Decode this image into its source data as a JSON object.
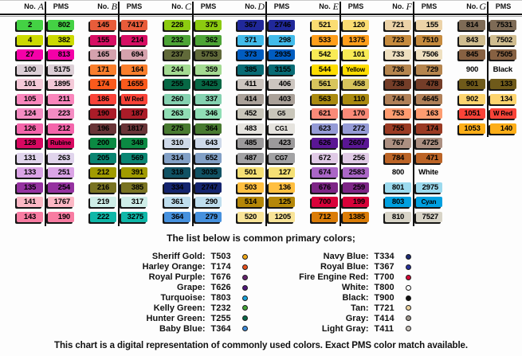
{
  "header": {
    "no_label": "No.",
    "pms_label": "PMS"
  },
  "chart_data": {
    "type": "table",
    "columns": [
      {
        "letter": "A",
        "rows": [
          {
            "no": "2",
            "pms": "802",
            "color": "#44d144"
          },
          {
            "no": "4",
            "pms": "382",
            "color": "#ccda00"
          },
          {
            "no": "27",
            "pms": "813",
            "color": "#f400a8"
          },
          {
            "no": "100",
            "pms": "5175",
            "color": "#dccfd6"
          },
          {
            "no": "101",
            "pms": "1895",
            "color": "#f4c9d8"
          },
          {
            "no": "105",
            "pms": "211",
            "color": "#fa86bc"
          },
          {
            "no": "124",
            "pms": "223",
            "color": "#f48cc2"
          },
          {
            "no": "126",
            "pms": "212",
            "color": "#f465ab"
          },
          {
            "no": "128",
            "pms": "Rubine",
            "color": "#d80861"
          },
          {
            "no": "131",
            "pms": "263",
            "color": "#e0d4ec"
          },
          {
            "no": "133",
            "pms": "251",
            "color": "#dba4e6"
          },
          {
            "no": "135",
            "pms": "254",
            "color": "#9532a0"
          },
          {
            "no": "141",
            "pms": "1767",
            "color": "#fcb8c5"
          },
          {
            "no": "143",
            "pms": "190",
            "color": "#f87ca2"
          }
        ]
      },
      {
        "letter": "B",
        "rows": [
          {
            "no": "145",
            "pms": "7417",
            "color": "#e85c3a"
          },
          {
            "no": "155",
            "pms": "214",
            "color": "#d60e63"
          },
          {
            "no": "165",
            "pms": "694",
            "color": "#d5a2ad"
          },
          {
            "no": "171",
            "pms": "164",
            "color": "#f97e2c"
          },
          {
            "no": "174",
            "pms": "1655",
            "color": "#fb5a1c"
          },
          {
            "no": "186",
            "pms": "W Red",
            "color": "#f94338"
          },
          {
            "no": "190",
            "pms": "187",
            "color": "#ab1c28"
          },
          {
            "no": "196",
            "pms": "1817",
            "color": "#693437"
          },
          {
            "no": "200",
            "pms": "348",
            "color": "#0b8a43"
          },
          {
            "no": "205",
            "pms": "569",
            "color": "#0a8572"
          },
          {
            "no": "212",
            "pms": "391",
            "color": "#a19b00"
          },
          {
            "no": "216",
            "pms": "385",
            "color": "#797322"
          },
          {
            "no": "219",
            "pms": "317",
            "color": "#cfeee8"
          },
          {
            "no": "222",
            "pms": "3275",
            "color": "#0fb7a8"
          }
        ]
      },
      {
        "letter": "C",
        "rows": [
          {
            "no": "228",
            "pms": "375",
            "color": "#8ccb10"
          },
          {
            "no": "232",
            "pms": "362",
            "color": "#4da436"
          },
          {
            "no": "237",
            "pms": "5753",
            "color": "#616a3a"
          },
          {
            "no": "244",
            "pms": "359",
            "color": "#a3da92"
          },
          {
            "no": "255",
            "pms": "3425",
            "color": "#076845"
          },
          {
            "no": "260",
            "pms": "337",
            "color": "#85d1b0"
          },
          {
            "no": "263",
            "pms": "346",
            "color": "#90deb5"
          },
          {
            "no": "275",
            "pms": "364",
            "color": "#487a30"
          },
          {
            "no": "310",
            "pms": "643",
            "color": "#ced9e9"
          },
          {
            "no": "314",
            "pms": "652",
            "color": "#82a0c6"
          },
          {
            "no": "318",
            "pms": "3035",
            "color": "#115264"
          },
          {
            "no": "334",
            "pms": "2747",
            "color": "#14246e"
          },
          {
            "no": "361",
            "pms": "290",
            "color": "#bfdeee"
          },
          {
            "no": "364",
            "pms": "279",
            "color": "#4691de"
          }
        ]
      },
      {
        "letter": "D",
        "rows": [
          {
            "no": "367",
            "pms": "2746",
            "color": "#20289a"
          },
          {
            "no": "371",
            "pms": "298",
            "color": "#41bbea"
          },
          {
            "no": "373",
            "pms": "2935",
            "color": "#005cc0"
          },
          {
            "no": "385",
            "pms": "3155",
            "color": "#086b74"
          },
          {
            "no": "411",
            "pms": "406",
            "color": "#ccc5bf"
          },
          {
            "no": "414",
            "pms": "403",
            "color": "#aaa199"
          },
          {
            "no": "452",
            "pms": "G5",
            "color": "#c9c6ba"
          },
          {
            "no": "483",
            "pms": "CG1",
            "color": "#e5e3de"
          },
          {
            "no": "485",
            "pms": "423",
            "color": "#9c9a9b"
          },
          {
            "no": "487",
            "pms": "CG7",
            "color": "#a2a2a4"
          },
          {
            "no": "501",
            "pms": "127",
            "color": "#f5e075"
          },
          {
            "no": "503",
            "pms": "136",
            "color": "#ffbf40"
          },
          {
            "no": "514",
            "pms": "125",
            "color": "#b58708"
          },
          {
            "no": "520",
            "pms": "1205",
            "color": "#f9e498"
          }
        ]
      },
      {
        "letter": "E",
        "rows": [
          {
            "no": "521",
            "pms": "120",
            "color": "#fbdd72"
          },
          {
            "no": "533",
            "pms": "1375",
            "color": "#ff9e1b"
          },
          {
            "no": "542",
            "pms": "101",
            "color": "#f8eb55"
          },
          {
            "no": "544",
            "pms": "Yellow",
            "color": "#fedd00"
          },
          {
            "no": "561",
            "pms": "458",
            "color": "#d8c55c"
          },
          {
            "no": "563",
            "pms": "110",
            "color": "#aa8a10"
          },
          {
            "no": "621",
            "pms": "170",
            "color": "#fa8a78"
          },
          {
            "no": "623",
            "pms": "272",
            "color": "#959bd6"
          },
          {
            "no": "626",
            "pms": "2607",
            "color": "#5a1694"
          },
          {
            "no": "672",
            "pms": "256",
            "color": "#e0cae6"
          },
          {
            "no": "674",
            "pms": "2583",
            "color": "#aa66c6"
          },
          {
            "no": "676",
            "pms": "259",
            "color": "#7d2586"
          },
          {
            "no": "700",
            "pms": "199",
            "color": "#d8023a"
          },
          {
            "no": "712",
            "pms": "1385",
            "color": "#da7c08"
          }
        ]
      },
      {
        "letter": "F",
        "rows": [
          {
            "no": "721",
            "pms": "155",
            "color": "#ecd3a8"
          },
          {
            "no": "723",
            "pms": "7510",
            "color": "#c68b3e"
          },
          {
            "no": "733",
            "pms": "7506",
            "color": "#efe0c0"
          },
          {
            "no": "736",
            "pms": "729",
            "color": "#b5854e"
          },
          {
            "no": "738",
            "pms": "478",
            "color": "#743d28"
          },
          {
            "no": "744",
            "pms": "4645",
            "color": "#b08058"
          },
          {
            "no": "753",
            "pms": "163",
            "color": "#fe9c70"
          },
          {
            "no": "755",
            "pms": "174",
            "color": "#9a3a23"
          },
          {
            "no": "767",
            "pms": "4725",
            "color": "#ac9082"
          },
          {
            "no": "784",
            "pms": "471",
            "color": "#bc6426"
          },
          {
            "no": "800",
            "pms": "White",
            "color": "#ffffff",
            "plain": true
          },
          {
            "no": "801",
            "pms": "2975",
            "color": "#9cdaee"
          },
          {
            "no": "803",
            "pms": "Cyan",
            "color": "#00a0e0"
          },
          {
            "no": "810",
            "pms": "7527",
            "color": "#d8d4c7"
          }
        ]
      },
      {
        "letter": "G",
        "rows": [
          {
            "no": "814",
            "pms": "7531",
            "color": "#7e6b56"
          },
          {
            "no": "843",
            "pms": "7502",
            "color": "#d0bd90"
          },
          {
            "no": "845",
            "pms": "7505",
            "color": "#876142"
          },
          {
            "no": "900",
            "pms": "Black",
            "color": "#ffffff",
            "plain": true
          },
          {
            "no": "901",
            "pms": "133",
            "color": "#6f5a1a"
          },
          {
            "no": "902",
            "pms": "134",
            "color": "#fdd46f"
          },
          {
            "no": "1051",
            "pms": "W Red",
            "color": "#fa4338"
          },
          {
            "no": "1053",
            "pms": "140",
            "color": "#fdae18"
          }
        ]
      }
    ]
  },
  "primary_colors": {
    "title": "The list below is common primary colors;",
    "left": [
      {
        "label": "Sheriff Gold:",
        "code": "T503",
        "dot": "#f0a818"
      },
      {
        "label": "Harley Orange:",
        "code": "T174",
        "dot": "#e8501c"
      },
      {
        "label": "Royal Purple:",
        "code": "T676",
        "dot": "#64246e"
      },
      {
        "label": "Grape:",
        "code": "T626",
        "dot": "#50187c"
      },
      {
        "label": "Turquoise:",
        "code": "T803",
        "dot": "#18a0d8"
      },
      {
        "label": "Kelly Green:",
        "code": "T232",
        "dot": "#44a438"
      },
      {
        "label": "Hunter Green:",
        "code": "T255",
        "dot": "#0a6848"
      },
      {
        "label": "Baby Blue:",
        "code": "T364",
        "dot": "#3d8ad8"
      }
    ],
    "right": [
      {
        "label": "Navy Blue:",
        "code": "T334",
        "dot": "#1c2a72"
      },
      {
        "label": "Royal Blue:",
        "code": "T367",
        "dot": "#27309a"
      },
      {
        "label": "Fire Engine Red:",
        "code": "T700",
        "dot": "#d40936"
      },
      {
        "label": "White:",
        "code": "T800",
        "dot": "#ffffff"
      },
      {
        "label": "Black:",
        "code": "T900",
        "dot": "#111111"
      },
      {
        "label": "Tan:",
        "code": "T721",
        "dot": "#ecd2a0"
      },
      {
        "label": "Gray:",
        "code": "T414",
        "dot": "#a09890"
      },
      {
        "label": "Light Gray:",
        "code": "T411",
        "dot": "#c9c2bb"
      }
    ]
  },
  "footer": "This chart is a digital representation of commonly used colors. Exact PMS color match available."
}
